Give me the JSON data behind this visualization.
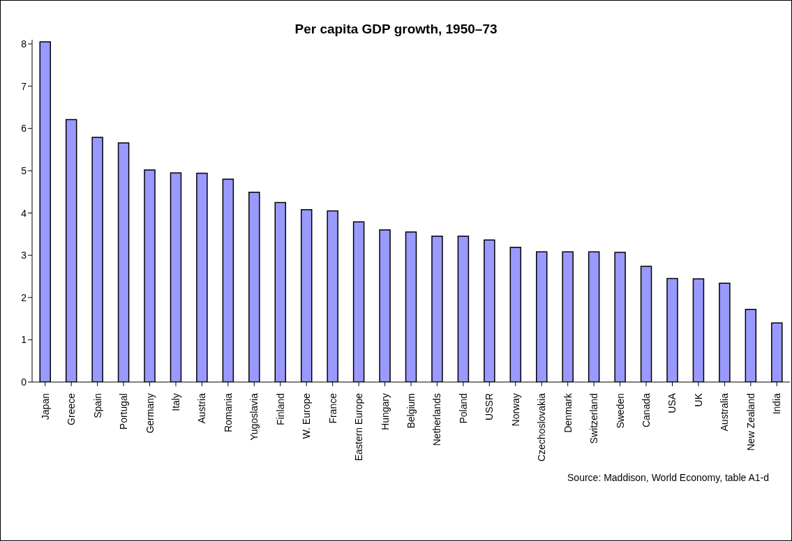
{
  "chart_data": {
    "type": "bar",
    "title": "Per capita GDP growth, 1950–73",
    "categories": [
      "Japan",
      "Greece",
      "Spain",
      "Portugal",
      "Germany",
      "Italy",
      "Austria",
      "Romania",
      "Yugoslavia",
      "Finland",
      "W. Europe",
      "France",
      "Eastern Europe",
      "Hungary",
      "Belgium",
      "Netherlands",
      "Poland",
      "USSR",
      "Norway",
      "Czechoslovakia",
      "Denmark",
      "Switzerland",
      "Sweden",
      "Canada",
      "USA",
      "UK",
      "Australia",
      "New Zealand",
      "India"
    ],
    "values": [
      8.05,
      6.21,
      5.79,
      5.66,
      5.02,
      4.95,
      4.94,
      4.8,
      4.49,
      4.25,
      4.08,
      4.05,
      3.79,
      3.6,
      3.55,
      3.45,
      3.45,
      3.36,
      3.19,
      3.08,
      3.08,
      3.08,
      3.07,
      2.74,
      2.45,
      2.44,
      2.34,
      1.72,
      1.4
    ],
    "color": "#9999ff",
    "ylim": [
      0,
      8.1
    ],
    "yticks": [
      0,
      1,
      2,
      3,
      4,
      5,
      6,
      7,
      8
    ],
    "grid": false,
    "annotations": [
      "Source: Maddison, World Economy, table A1-d"
    ]
  }
}
